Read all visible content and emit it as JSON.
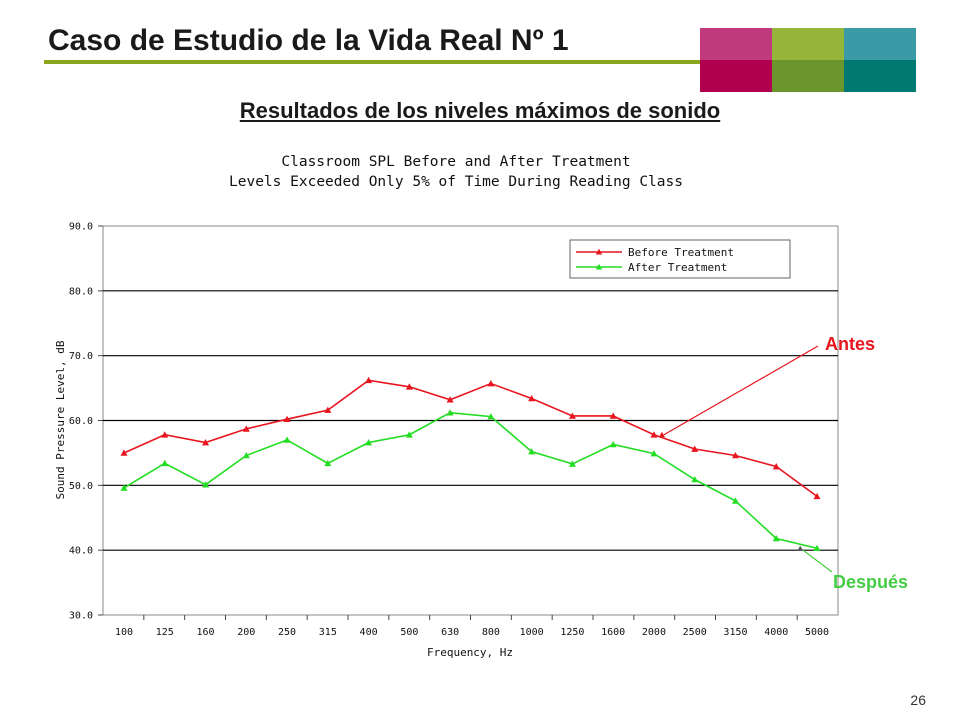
{
  "slide": {
    "title": "Caso de Estudio de la Vida Real Nº 1",
    "subtitle": "Resultados de los niveles máximos de sonido",
    "page_number": "26",
    "accent_color": "#8aa61c",
    "tile_colors_top": [
      "#c23a7e",
      "#96b53b",
      "#3a9aa5"
    ],
    "tile_colors_bottom": [
      "#b0004e",
      "#6a962d",
      "#007a70"
    ]
  },
  "chart_data": {
    "type": "line",
    "title": [
      "Classroom SPL Before and After Treatment",
      "Levels Exceeded Only 5% of Time During Reading Class"
    ],
    "xlabel": "Frequency, Hz",
    "ylabel": "Sound Pressure Level, dB",
    "categories": [
      "100",
      "125",
      "160",
      "200",
      "250",
      "315",
      "400",
      "500",
      "630",
      "800",
      "1000",
      "1250",
      "1600",
      "2000",
      "2500",
      "3150",
      "4000",
      "5000"
    ],
    "ylim": [
      30,
      90
    ],
    "yticks": [
      "30.0",
      "40.0",
      "50.0",
      "60.0",
      "70.0",
      "80.0",
      "90.0"
    ],
    "grid": "horizontal",
    "legend_position": "top-right",
    "series": [
      {
        "name": "Before Treatment",
        "color": "#e8141e",
        "values": [
          55.0,
          57.8,
          56.6,
          58.7,
          60.2,
          61.6,
          66.2,
          65.2,
          63.2,
          65.7,
          63.4,
          60.7,
          60.7,
          57.8,
          55.6,
          54.6,
          52.9,
          48.3
        ]
      },
      {
        "name": "After Treatment",
        "color": "#22dd22",
        "values": [
          49.6,
          53.4,
          50.1,
          54.6,
          57.0,
          53.4,
          56.6,
          57.8,
          61.2,
          60.6,
          55.2,
          53.3,
          56.3,
          54.9,
          50.9,
          47.6,
          41.8,
          40.3
        ]
      }
    ],
    "annotations": [
      {
        "text": "Antes",
        "color": "#e8141e",
        "series": 0,
        "point": 13
      },
      {
        "text": "Después",
        "color": "#44cc44",
        "series": 1,
        "point": 16
      }
    ]
  }
}
